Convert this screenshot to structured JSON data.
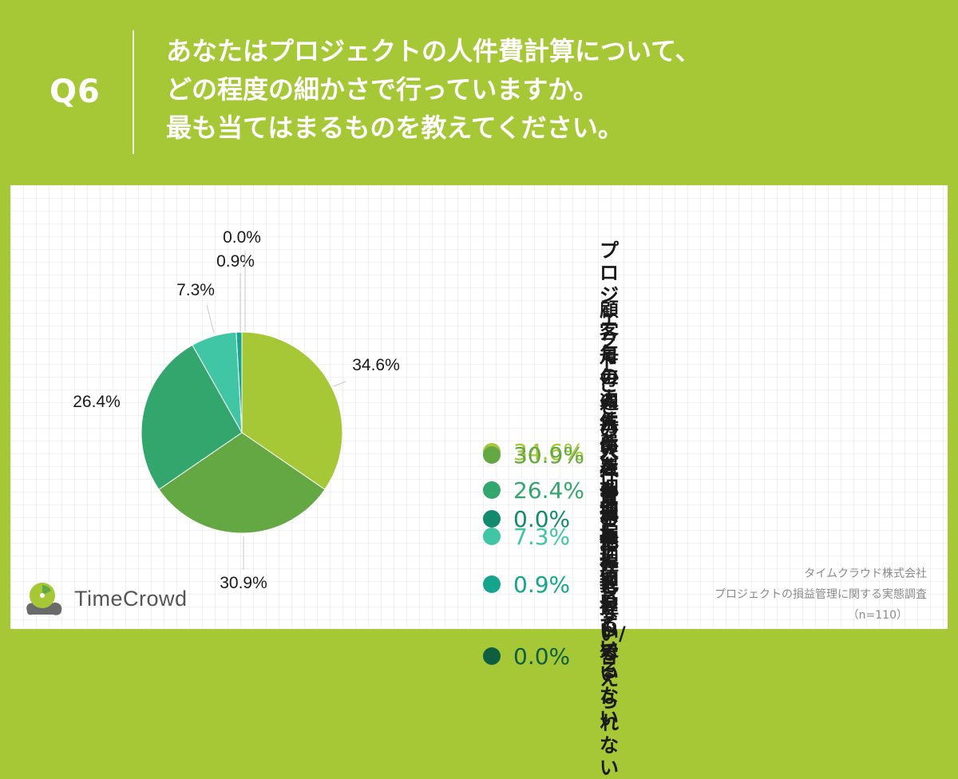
{
  "question": {
    "label": "Q6",
    "lines": [
      "あなたはプロジェクトの人件費計算について、",
      "どの程度の細かさで行っていますか。",
      "最も当てはまるものを教えてください。"
    ]
  },
  "chart_data": {
    "type": "pie",
    "slices": [
      {
        "label": "プロジェクトごとの人件費を把握している",
        "value": 34.6,
        "color": "#a7c836",
        "pie_label": "34.6%"
      },
      {
        "label": "顧客毎の人件費を把握している",
        "value": 30.9,
        "color": "#64a843",
        "pie_label": "30.9%"
      },
      {
        "label": "月毎の人件費を把握している",
        "value": 26.4,
        "color": "#33a66e",
        "pie_label": "26.4%"
      },
      {
        "label": "週毎の人件費を把握している",
        "value": 7.3,
        "color": "#40c5a5",
        "pie_label": "7.3%"
      },
      {
        "label": "人件費を全く把握していない",
        "value": 0.9,
        "color": "#15a58d",
        "pie_label": "0.9%"
      },
      {
        "label": "その他",
        "value": 0.0,
        "color": "#138a6e",
        "pie_label": "0.0%"
      },
      {
        "label": "わからない/答えられない",
        "value": 0.0,
        "color": "#0d5e43",
        "pie_label": ""
      }
    ],
    "legend": [
      {
        "pct": "34.6%",
        "lines": [
          "プロジェクトごとの人件費を",
          "把握している"
        ]
      },
      {
        "pct": "30.9%",
        "lines": [
          "顧客毎の人件費を把握している"
        ]
      },
      {
        "pct": "26.4%",
        "lines": [
          "月毎の人件費を把握している"
        ]
      },
      {
        "pct": "7.3%",
        "lines": [
          "週毎の人件費を把握している"
        ]
      },
      {
        "pct": "0.9%",
        "lines": [
          "人件費を全く把握していない"
        ]
      },
      {
        "pct": "0.0%",
        "lines": [
          "その他"
        ]
      },
      {
        "pct": "0.0%",
        "lines": [
          "わからない/答えられない"
        ]
      }
    ],
    "legend_placement": "right"
  },
  "footer": {
    "company": "タイムクラウド株式会社",
    "survey": "プロジェクトの損益管理に関する実態調査",
    "sample": "（n=110）"
  },
  "logo": {
    "text": "TimeCrowd",
    "icon": "timecrowd-logo-icon"
  }
}
